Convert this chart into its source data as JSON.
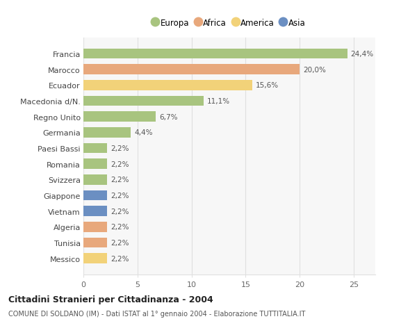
{
  "categories": [
    "Francia",
    "Marocco",
    "Ecuador",
    "Macedonia d/N.",
    "Regno Unito",
    "Germania",
    "Paesi Bassi",
    "Romania",
    "Svizzera",
    "Giappone",
    "Vietnam",
    "Algeria",
    "Tunisia",
    "Messico"
  ],
  "values": [
    24.4,
    20.0,
    15.6,
    11.1,
    6.7,
    4.4,
    2.2,
    2.2,
    2.2,
    2.2,
    2.2,
    2.2,
    2.2,
    2.2
  ],
  "labels": [
    "24,4%",
    "20,0%",
    "15,6%",
    "11,1%",
    "6,7%",
    "4,4%",
    "2,2%",
    "2,2%",
    "2,2%",
    "2,2%",
    "2,2%",
    "2,2%",
    "2,2%",
    "2,2%"
  ],
  "colors": [
    "#a8c47f",
    "#e8a87c",
    "#f2d279",
    "#a8c47f",
    "#a8c47f",
    "#a8c47f",
    "#a8c47f",
    "#a8c47f",
    "#a8c47f",
    "#6b8fc2",
    "#6b8fc2",
    "#e8a87c",
    "#e8a87c",
    "#f2d279"
  ],
  "legend_labels": [
    "Europa",
    "Africa",
    "America",
    "Asia"
  ],
  "legend_colors": [
    "#a8c47f",
    "#e8a87c",
    "#f2d279",
    "#6b8fc2"
  ],
  "xlim": [
    0,
    27
  ],
  "xticks": [
    0,
    5,
    10,
    15,
    20,
    25
  ],
  "title": "Cittadini Stranieri per Cittadinanza - 2004",
  "subtitle": "COMUNE DI SOLDANO (IM) - Dati ISTAT al 1° gennaio 2004 - Elaborazione TUTTITALIA.IT",
  "background_color": "#ffffff",
  "plot_bg_color": "#f7f7f7",
  "grid_color": "#e0e0e0",
  "bar_height": 0.65,
  "figsize": [
    6.0,
    4.6
  ],
  "dpi": 100
}
